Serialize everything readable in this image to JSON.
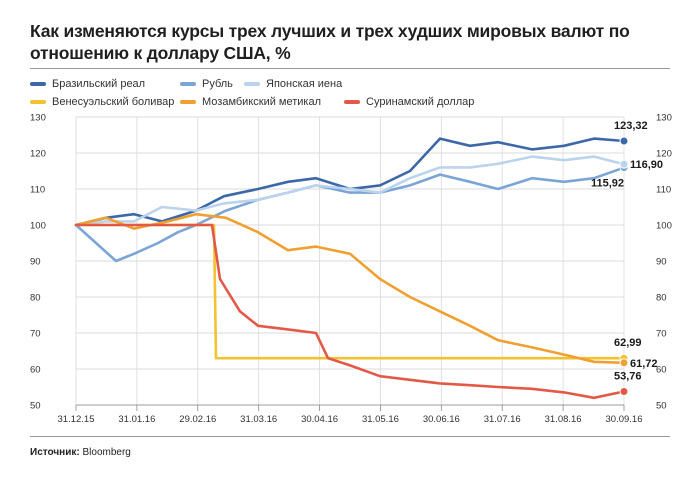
{
  "title": "Как изменяются курсы  трех лучших и трех худших мировых валют по отношению к доллару США, %",
  "source_label": "Источник:",
  "source_value": "Bloomberg",
  "chart_data": {
    "type": "line",
    "x_labels": [
      "31.12.15",
      "31.01.16",
      "29.02.16",
      "31.03.16",
      "30.04.16",
      "31.05.16",
      "30.06.16",
      "31.07.16",
      "31.08.16",
      "30.09.16"
    ],
    "yticks": [
      50,
      60,
      70,
      80,
      90,
      100,
      110,
      120,
      130
    ],
    "ylim": [
      50,
      130
    ],
    "grid": true,
    "legend_position": "top",
    "series": [
      {
        "name": "Бразильский реал",
        "color": "#3d68a8",
        "end_label": "123,32",
        "x": [
          "2015-12-31",
          "2016-01-15",
          "2016-01-29",
          "2016-02-12",
          "2016-02-29",
          "2016-03-14",
          "2016-03-31",
          "2016-04-15",
          "2016-04-29",
          "2016-05-16",
          "2016-05-31",
          "2016-06-15",
          "2016-06-30",
          "2016-07-15",
          "2016-07-29",
          "2016-08-15",
          "2016-08-31",
          "2016-09-15",
          "2016-09-30"
        ],
        "y": [
          100,
          102,
          103,
          101,
          104,
          108,
          110,
          112,
          113,
          110,
          111,
          115,
          124,
          122,
          123,
          121,
          122,
          124,
          123.32
        ]
      },
      {
        "name": "Рубль",
        "color": "#7ba5d6",
        "end_label": "115,92",
        "x": [
          "2015-12-31",
          "2016-01-10",
          "2016-01-20",
          "2016-01-29",
          "2016-02-10",
          "2016-02-20",
          "2016-02-29",
          "2016-03-15",
          "2016-03-31",
          "2016-04-15",
          "2016-04-29",
          "2016-05-16",
          "2016-05-31",
          "2016-06-15",
          "2016-06-30",
          "2016-07-15",
          "2016-07-29",
          "2016-08-15",
          "2016-08-31",
          "2016-09-15",
          "2016-09-30"
        ],
        "y": [
          100,
          95,
          90,
          92,
          95,
          98,
          100,
          104,
          107,
          109,
          111,
          109,
          109,
          111,
          114,
          112,
          110,
          113,
          112,
          113,
          115.92
        ]
      },
      {
        "name": "Японская иена",
        "color": "#bcd3ec",
        "end_label": "116,90",
        "x": [
          "2015-12-31",
          "2016-01-15",
          "2016-01-29",
          "2016-02-12",
          "2016-02-29",
          "2016-03-14",
          "2016-03-31",
          "2016-04-15",
          "2016-04-29",
          "2016-05-16",
          "2016-05-31",
          "2016-06-15",
          "2016-06-30",
          "2016-07-15",
          "2016-07-29",
          "2016-08-15",
          "2016-08-31",
          "2016-09-15",
          "2016-09-30"
        ],
        "y": [
          100,
          101,
          101,
          105,
          104,
          106,
          107,
          109,
          111,
          110,
          109,
          113,
          116,
          116,
          117,
          119,
          118,
          119,
          116.9
        ]
      },
      {
        "name": "Венесуэльский боливар",
        "color": "#f2c230",
        "end_label": "62,99",
        "x": [
          "2015-12-31",
          "2016-03-09",
          "2016-03-10",
          "2016-09-30"
        ],
        "y": [
          100,
          100,
          63,
          62.99
        ]
      },
      {
        "name": "Мозамбикский метикал",
        "color": "#f0a030",
        "end_label": "61,72",
        "x": [
          "2015-12-31",
          "2016-01-15",
          "2016-01-29",
          "2016-02-15",
          "2016-02-29",
          "2016-03-15",
          "2016-03-31",
          "2016-04-15",
          "2016-04-29",
          "2016-05-16",
          "2016-05-31",
          "2016-06-15",
          "2016-06-30",
          "2016-07-15",
          "2016-07-29",
          "2016-08-15",
          "2016-08-31",
          "2016-09-15",
          "2016-09-30"
        ],
        "y": [
          100,
          102,
          99,
          101,
          103,
          102,
          98,
          93,
          94,
          92,
          85,
          80,
          76,
          72,
          68,
          66,
          64,
          62,
          61.72
        ]
      },
      {
        "name": "Суринамский доллар",
        "color": "#e25a47",
        "end_label": "53,76",
        "x": [
          "2015-12-31",
          "2016-03-08",
          "2016-03-12",
          "2016-03-22",
          "2016-03-31",
          "2016-04-15",
          "2016-04-29",
          "2016-05-05",
          "2016-05-16",
          "2016-05-31",
          "2016-06-15",
          "2016-06-30",
          "2016-07-15",
          "2016-07-29",
          "2016-08-15",
          "2016-08-31",
          "2016-09-15",
          "2016-09-30"
        ],
        "y": [
          100,
          100,
          85,
          76,
          72,
          71,
          70,
          63,
          61,
          58,
          57,
          56,
          55.5,
          55,
          54.5,
          53.5,
          52,
          53.76
        ]
      }
    ]
  }
}
